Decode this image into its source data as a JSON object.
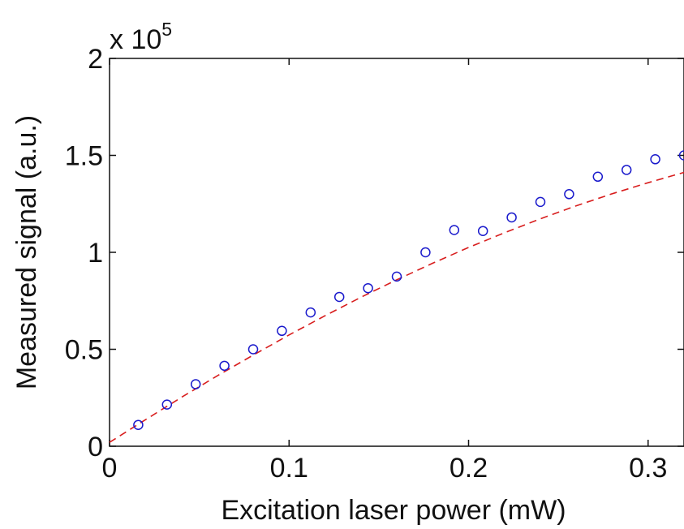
{
  "chart_data": {
    "type": "scatter",
    "title": "",
    "xlabel": "Excitation laser power (mW)",
    "ylabel": "Measured signal (a.u.)",
    "y_multiplier_base": "x 10",
    "y_multiplier_exponent": "5",
    "xlim": [
      0,
      0.32
    ],
    "ylim": [
      0,
      200000
    ],
    "x_ticks": [
      0,
      0.1,
      0.2,
      0.3
    ],
    "x_tick_labels": [
      "0",
      "0.1",
      "0.2",
      "0.3"
    ],
    "y_ticks": [
      0,
      50000,
      100000,
      150000,
      200000
    ],
    "y_tick_labels": [
      "0",
      "0.5",
      "1",
      "1.5",
      "2"
    ],
    "grid": false,
    "series": [
      {
        "kind": "markers",
        "marker": "circle",
        "color": "#1a1acc",
        "x": [
          0.016,
          0.032,
          0.048,
          0.064,
          0.08,
          0.096,
          0.112,
          0.128,
          0.144,
          0.16,
          0.176,
          0.192,
          0.208,
          0.224,
          0.24,
          0.256,
          0.272,
          0.288,
          0.304,
          0.32
        ],
        "y": [
          11000,
          21500,
          32000,
          41500,
          50000,
          59500,
          69000,
          77000,
          81500,
          87500,
          100000,
          111500,
          111000,
          118000,
          126000,
          130000,
          139000,
          142500,
          148000,
          150000
        ]
      },
      {
        "kind": "fit_line",
        "line_style": "dashed",
        "color": "#d81e1e",
        "x": [
          0.0,
          0.02,
          0.04,
          0.06,
          0.08,
          0.1,
          0.12,
          0.14,
          0.16,
          0.18,
          0.2,
          0.22,
          0.24,
          0.26,
          0.28,
          0.3,
          0.32
        ],
        "y": [
          2000,
          13700,
          25200,
          36300,
          47000,
          57400,
          67300,
          76800,
          85800,
          94400,
          102500,
          110100,
          117300,
          124000,
          130200,
          135900,
          141200
        ]
      }
    ]
  }
}
